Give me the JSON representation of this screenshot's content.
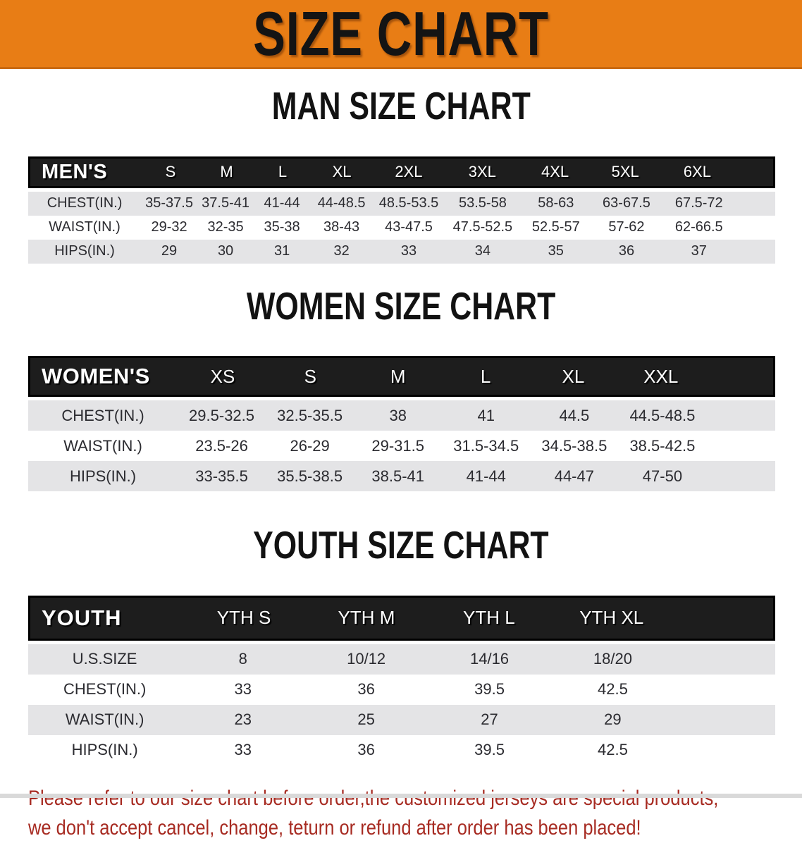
{
  "banner": {
    "title": "SIZE CHART",
    "bg_color": "#E87D15"
  },
  "sections": [
    {
      "heading": "MAN SIZE CHART",
      "table": {
        "label": "MEN'S",
        "columns": [
          "S",
          "M",
          "L",
          "XL",
          "2XL",
          "3XL",
          "4XL",
          "5XL",
          "6XL"
        ],
        "rows": [
          {
            "label": "CHEST(IN.)",
            "values": [
              "35-37.5",
              "37.5-41",
              "41-44",
              "44-48.5",
              "48.5-53.5",
              "53.5-58",
              "58-63",
              "63-67.5",
              "67.5-72"
            ]
          },
          {
            "label": "WAIST(IN.)",
            "values": [
              "29-32",
              "32-35",
              "35-38",
              "38-43",
              "43-47.5",
              "47.5-52.5",
              "52.5-57",
              "57-62",
              "62-66.5"
            ]
          },
          {
            "label": "HIPS(IN.)",
            "values": [
              "29",
              "30",
              "31",
              "32",
              "33",
              "34",
              "35",
              "36",
              "37"
            ]
          }
        ]
      }
    },
    {
      "heading": "WOMEN SIZE CHART",
      "table": {
        "label": "WOMEN'S",
        "columns": [
          "XS",
          "S",
          "M",
          "L",
          "XL",
          "XXL"
        ],
        "rows": [
          {
            "label": "CHEST(IN.)",
            "values": [
              "29.5-32.5",
              "32.5-35.5",
              "38",
              "41",
              "44.5",
              "44.5-48.5"
            ]
          },
          {
            "label": "WAIST(IN.)",
            "values": [
              "23.5-26",
              "26-29",
              "29-31.5",
              "31.5-34.5",
              "34.5-38.5",
              "38.5-42.5"
            ]
          },
          {
            "label": "HIPS(IN.)",
            "values": [
              "33-35.5",
              "35.5-38.5",
              "38.5-41",
              "41-44",
              "44-47",
              "47-50"
            ]
          }
        ]
      }
    },
    {
      "heading": "YOUTH SIZE CHART",
      "table": {
        "label": "YOUTH",
        "columns": [
          "YTH S",
          "YTH M",
          "YTH L",
          "YTH XL"
        ],
        "rows": [
          {
            "label": "U.S.SIZE",
            "values": [
              "8",
              "10/12",
              "14/16",
              "18/20"
            ]
          },
          {
            "label": "CHEST(IN.)",
            "values": [
              "33",
              "36",
              "39.5",
              "42.5"
            ]
          },
          {
            "label": "WAIST(IN.)",
            "values": [
              "23",
              "25",
              "27",
              "29"
            ]
          },
          {
            "label": "HIPS(IN.)",
            "values": [
              "33",
              "36",
              "39.5",
              "42.5"
            ]
          }
        ]
      }
    }
  ],
  "footer": {
    "line1": "Please refer to our size chart before order,the customized jerseys are special products,",
    "line2": "we don't accept cancel, change, teturn or refund after order has been placed!",
    "text_color": "#a72b22"
  }
}
